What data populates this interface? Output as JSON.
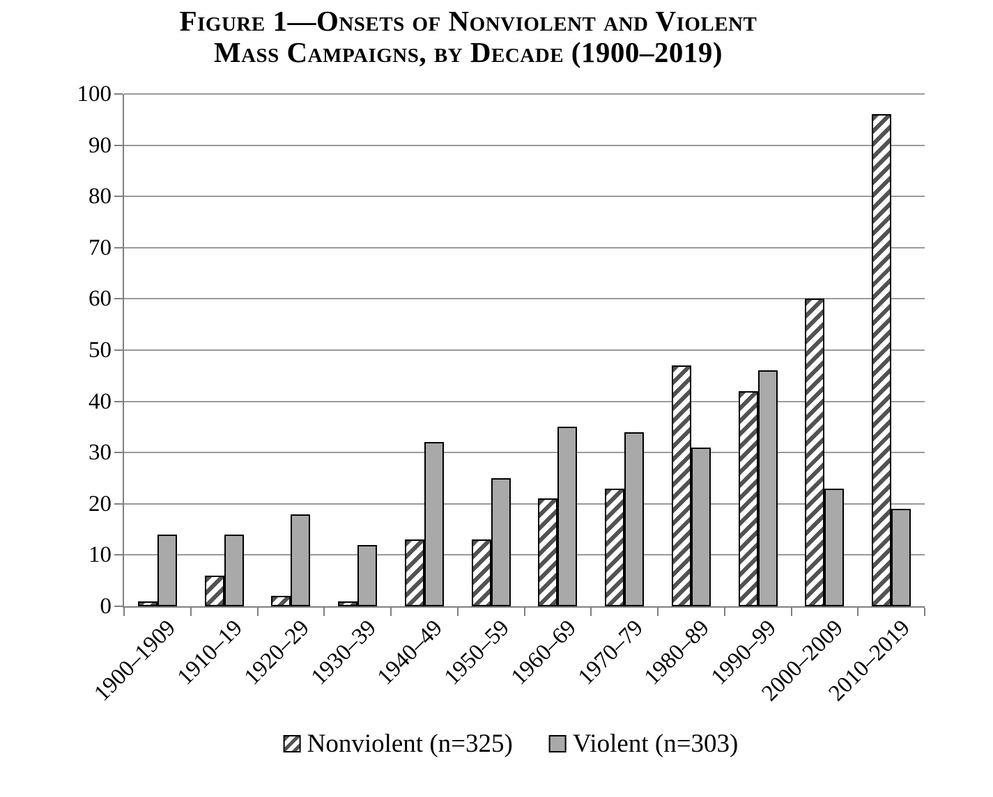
{
  "title": {
    "line1": "Figure 1—Onsets of Nonviolent and Violent",
    "line2": "Mass Campaigns, by Decade (1900–2019)"
  },
  "chart_data": {
    "type": "bar",
    "title": "Figure 1—Onsets of Nonviolent and Violent Mass Campaigns, by Decade (1900–2019)",
    "categories": [
      "1900–1909",
      "1910–19",
      "1920–29",
      "1930–39",
      "1940–49",
      "1950–59",
      "1960–69",
      "1970–79",
      "1980–89",
      "1990–99",
      "2000–2009",
      "2010–2019"
    ],
    "series": [
      {
        "name": "Nonviolent (n=325)",
        "style": "hatched",
        "values": [
          1,
          6,
          2,
          1,
          13,
          13,
          21,
          23,
          47,
          42,
          60,
          96
        ]
      },
      {
        "name": "Violent (n=303)",
        "style": "solid",
        "values": [
          14,
          14,
          18,
          12,
          32,
          25,
          35,
          34,
          31,
          46,
          23,
          19
        ]
      }
    ],
    "xlabel": "",
    "ylabel": "",
    "ylim": [
      0,
      100
    ],
    "yticks": [
      0,
      10,
      20,
      30,
      40,
      50,
      60,
      70,
      80,
      90,
      100
    ],
    "grid": true,
    "legend_position": "bottom",
    "x_label_rotation_deg": -45
  },
  "colors": {
    "violent_fill": "#a9a9a9",
    "hatch_stripe": "#525252",
    "hatch_background": "#ffffff",
    "gridline": "#9a9a9a",
    "axis": "#7f7f7f",
    "bar_border": "#000000",
    "text": "#000000"
  }
}
